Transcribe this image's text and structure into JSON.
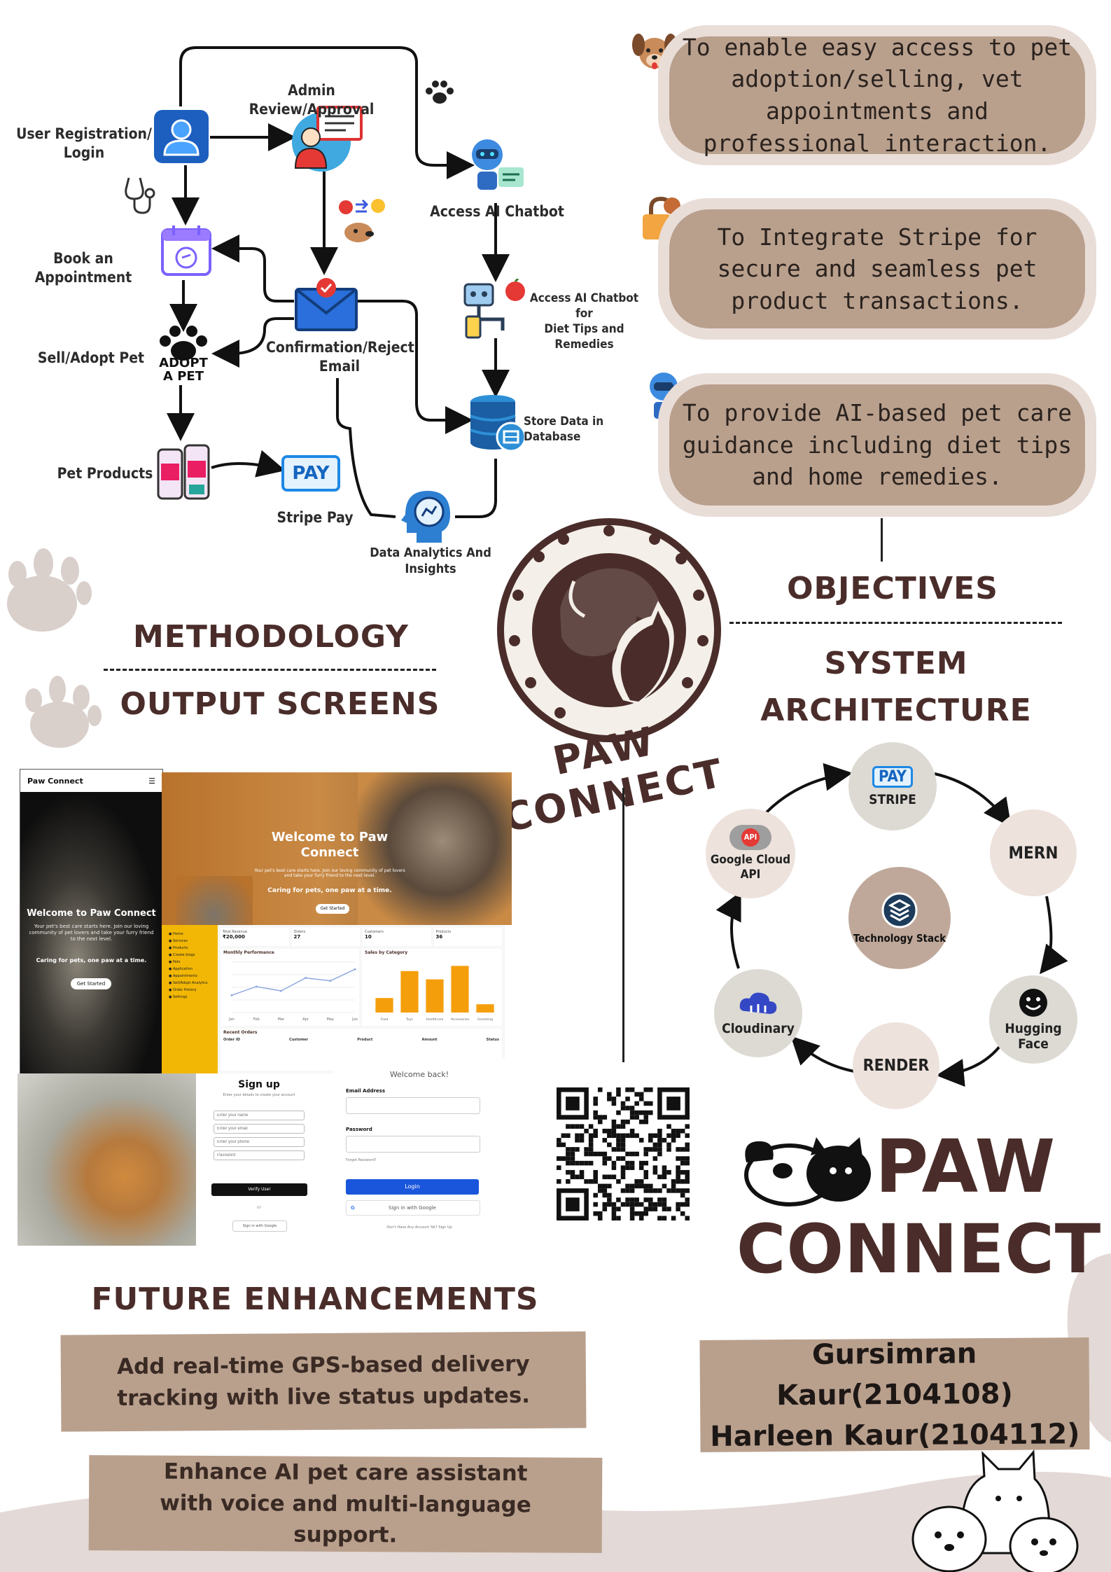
{
  "flowchart": {
    "user_registration": "User Registration/\nLogin",
    "admin_review": "Admin Review/Approval",
    "access_chatbot": "Access AI Chatbot",
    "book_appointment": "Book an Appointment",
    "confirmation_email": "Confirmation/Reject\nEmail",
    "chatbot_diet": "Access AI Chatbot for\nDiet Tips and\nRemedies",
    "sell_adopt": "Sell/Adopt Pet",
    "adopt_badge": "ADOPT\nA PET",
    "store_db": "Store Data in Database",
    "pet_products": "Pet Products",
    "pay_badge": "PAY",
    "stripe_pay": "Stripe Pay",
    "analytics": "Data Analytics And\nInsights"
  },
  "objectives": [
    "To enable easy access to pet adoption/selling, vet appointments and professional interaction.",
    "To Integrate Stripe for secure and seamless pet product transactions.",
    "To provide AI-based pet care guidance including diet tips and home remedies."
  ],
  "headings": {
    "methodology": "METHODOLOGY",
    "output_screens": "OUTPUT SCREENS",
    "objectives": "OBJECTIVES",
    "system_architecture": "SYSTEM\nARCHITECTURE",
    "future_enhancements": "FUTURE ENHANCEMENTS"
  },
  "logo": {
    "arc_text": "PAW CONNECT",
    "brand_line1": "PAW",
    "brand_line2": "CONNECT"
  },
  "architecture": {
    "stripe_badge": "PAY",
    "stripe": "STRIPE",
    "mern": "MERN",
    "hugging_face": "Hugging Face",
    "render": "RENDER",
    "cloudinary": "Cloudinary",
    "google_cloud": "Google Cloud\nAPI",
    "api_badge": "API",
    "center": "Technology Stack"
  },
  "screens": {
    "mobile_brand": "Paw Connect",
    "mobile_welcome": "Welcome to Paw Connect",
    "mobile_sub": "Your pet's best care starts here. Join our loving community of pet lovers and take your furry friend to the next level.",
    "mobile_tagline": "Caring for pets, one paw at a time.",
    "mobile_btn": "Get Started",
    "hero_title": "Welcome to Paw\nConnect",
    "hero_sub": "Your pet's best care starts here. Join our loving community of pet lovers and take your furry friend to the next level.",
    "hero_tagline": "Caring for pets, one paw at a time.",
    "hero_btn": "Get Started",
    "dash_stat1_label": "Total Revenue",
    "dash_stat1": "₹20,000",
    "dash_stat2_label": "Orders",
    "dash_stat2": "27",
    "dash_stat3_label": "Customers",
    "dash_stat3": "10",
    "dash_stat4_label": "Products",
    "dash_stat4": "36",
    "dash_chart1": "Monthly Performance",
    "dash_chart2": "Sales by Category",
    "dash_orders": "Recent Orders",
    "dash_menu": [
      "Home",
      "Services",
      "Products",
      "Create blogs",
      "Pets",
      "Application",
      "Appointments",
      "Sell/Adopt Analytics",
      "Order History",
      "Settings"
    ],
    "dash_cols": [
      "Order ID",
      "Customer",
      "Product",
      "Amount",
      "Status"
    ],
    "signup_title": "Sign up",
    "signup_sub": "Enter your details to create your account",
    "signup_fields": [
      "Enter your name",
      "Enter your email",
      "Enter your phone",
      "Password"
    ],
    "signup_btn": "Verify User",
    "signup_or": "or",
    "signup_google": "Sign in with Google",
    "login_title": "Welcome back!",
    "login_email": "Email Address",
    "login_password": "Password",
    "login_forgot": "Forgot Password?",
    "login_btn": "Login",
    "login_google": "Sign in with Google",
    "login_foot": "Don't Have Any Account Yet? Sign Up"
  },
  "future": [
    "Add real-time GPS-based delivery tracking with live status updates.",
    "Enhance AI pet care assistant with voice and multi-language support."
  ],
  "authors": [
    "Gursimran Kaur(2104108)",
    "Harleen Kaur(2104112)"
  ],
  "chart_data": [
    {
      "type": "line",
      "title": "Monthly Performance",
      "categories": [
        "Jan",
        "Feb",
        "Mar",
        "Apr",
        "May",
        "Jun"
      ],
      "values": [
        1200,
        1800,
        1500,
        2400,
        2200,
        3000
      ]
    },
    {
      "type": "bar",
      "title": "Sales by Category",
      "categories": [
        "Food",
        "Toys",
        "Healthcare",
        "Accessories",
        "Grooming"
      ],
      "values": [
        14,
        40,
        32,
        45,
        8
      ]
    }
  ],
  "colors": {
    "brown": "#4a2d2a",
    "tan": "#b9a08d",
    "blush": "#e9ddd8",
    "accent_blue": "#1a56db",
    "yellow": "#f2b705"
  }
}
